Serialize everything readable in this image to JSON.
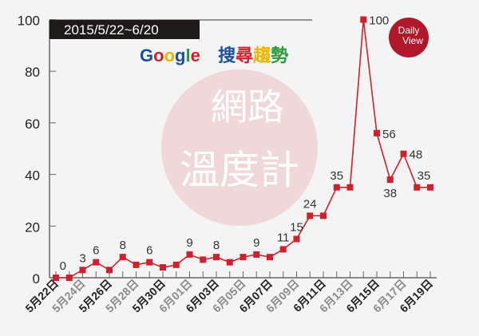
{
  "header": {
    "date_range": "2015/5/22~6/20",
    "subtitle_google": [
      "G",
      "o",
      "o",
      "g",
      "l",
      "e"
    ],
    "subtitle_google_colors": [
      "#1a4fa0",
      "#d0202e",
      "#f0b400",
      "#1a4fa0",
      "#2a9a3a",
      "#d0202e"
    ],
    "subtitle_cjk": [
      "搜",
      "尋",
      "趨",
      "勢"
    ],
    "subtitle_cjk_colors": [
      "#1a4fa0",
      "#d0202e",
      "#f0b400",
      "#2a9a3a"
    ]
  },
  "watermark": {
    "line1": "網路",
    "line2": "溫度計",
    "circle_color": "#f0d8d8"
  },
  "logo": {
    "line1": "Daily",
    "line2": "View",
    "color": "#b0182a"
  },
  "chart_data": {
    "type": "line",
    "title": "",
    "xlabel": "",
    "ylabel": "",
    "ylim": [
      0,
      100
    ],
    "yticks": [
      0,
      20,
      40,
      60,
      80,
      100
    ],
    "grid": false,
    "line_color": "#d0202e",
    "x": [
      "5月22日",
      "5月23日",
      "5月24日",
      "5月25日",
      "5月26日",
      "5月27日",
      "5月28日",
      "5月29日",
      "5月30日",
      "5月31日",
      "6月01日",
      "6月02日",
      "6月03日",
      "6月04日",
      "6月05日",
      "6月06日",
      "6月07日",
      "6月08日",
      "6月09日",
      "6月10日",
      "6月11日",
      "6月12日",
      "6月13日",
      "6月14日",
      "6月15日",
      "6月16日",
      "6月17日",
      "6月18日",
      "6月19日"
    ],
    "x_tick_labels": [
      "5月22日",
      "5月24日",
      "5月26日",
      "5月28日",
      "5月30日",
      "6月01日",
      "6月03日",
      "6月05日",
      "6月07日",
      "6月09日",
      "6月11日",
      "6月13日",
      "6月15日",
      "6月17日",
      "6月19日"
    ],
    "values": [
      0,
      0,
      3,
      6,
      3,
      8,
      5,
      6,
      4,
      5,
      9,
      7,
      8,
      6,
      8,
      9,
      8,
      11,
      15,
      24,
      24,
      35,
      35,
      100,
      56,
      38,
      48,
      35,
      35
    ],
    "data_labels": [
      {
        "index": 1,
        "text": "0"
      },
      {
        "index": 2,
        "text": "3"
      },
      {
        "index": 3,
        "text": "6"
      },
      {
        "index": 5,
        "text": "8"
      },
      {
        "index": 7,
        "text": "6"
      },
      {
        "index": 10,
        "text": "9"
      },
      {
        "index": 12,
        "text": "8"
      },
      {
        "index": 15,
        "text": "9"
      },
      {
        "index": 17,
        "text": "11"
      },
      {
        "index": 18,
        "text": "15"
      },
      {
        "index": 19,
        "text": "24"
      },
      {
        "index": 21,
        "text": "35"
      },
      {
        "index": 23,
        "text": "100"
      },
      {
        "index": 24,
        "text": "56"
      },
      {
        "index": 25,
        "text": "38"
      },
      {
        "index": 26,
        "text": "48"
      },
      {
        "index": 28,
        "text": "35"
      }
    ]
  }
}
